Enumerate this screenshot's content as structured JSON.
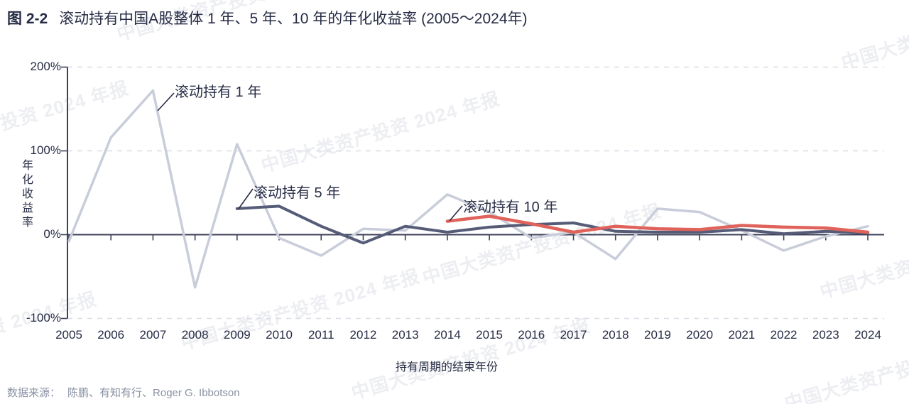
{
  "page": {
    "title_tag": "图 2-2",
    "title": "滚动持有中国A股整体 1 年、5 年、10 年的年化收益率 (2005～2024年)",
    "watermark_text": "中国大类资产投资 2024 年报",
    "source_label": "数据来源：",
    "source_text": "陈鹏、有知有行、Roger G. Ibbotson"
  },
  "colors": {
    "title": "#272c45",
    "axis": "#3c4258",
    "grid": "#dadde5",
    "series_1yr": "#c9cdda",
    "series_5yr": "#565c77",
    "series_10yr": "#e0635b",
    "source_text": "#8a92a3"
  },
  "chart_data": {
    "type": "line",
    "title": "滚动持有中国A股整体 1 年、5 年、10 年的年化收益率 (2005～2024年)",
    "xlabel": "持有周期的结束年份",
    "ylabel": "年化收益率",
    "unit": "percent",
    "x": [
      2005,
      2006,
      2007,
      2008,
      2009,
      2010,
      2011,
      2012,
      2013,
      2014,
      2015,
      2016,
      2017,
      2018,
      2019,
      2020,
      2021,
      2022,
      2023,
      2024
    ],
    "ylim": [
      -100,
      200
    ],
    "yticks": [
      {
        "value": 200,
        "label": "200%"
      },
      {
        "value": 100,
        "label": "100%"
      },
      {
        "value": 0,
        "label": "0%"
      },
      {
        "value": -100,
        "label": "-100%"
      }
    ],
    "grid": "horizontal-dashed",
    "legend_position": "inline-annotations",
    "series": [
      {
        "name": "滚动持有 1 年",
        "color": "#c9cdda",
        "values": [
          -8,
          116,
          172,
          -63,
          108,
          -4,
          -25,
          7,
          5,
          48,
          27,
          -4,
          3,
          -29,
          31,
          27,
          5,
          -19,
          -2,
          10
        ]
      },
      {
        "name": "滚动持有 5 年",
        "color": "#565c77",
        "values": [
          null,
          null,
          null,
          null,
          31,
          34,
          10,
          -10,
          10,
          3,
          9,
          12,
          14,
          4,
          3,
          3,
          6,
          1,
          4,
          2
        ]
      },
      {
        "name": "滚动持有 10 年",
        "color": "#e0635b",
        "values": [
          null,
          null,
          null,
          null,
          null,
          null,
          null,
          null,
          null,
          16,
          22,
          13,
          3,
          10,
          7,
          6,
          11,
          9,
          8,
          3
        ]
      }
    ],
    "annotations": [
      "滚动持有 1 年",
      "滚动持有 5 年",
      "滚动持有 10 年"
    ]
  }
}
